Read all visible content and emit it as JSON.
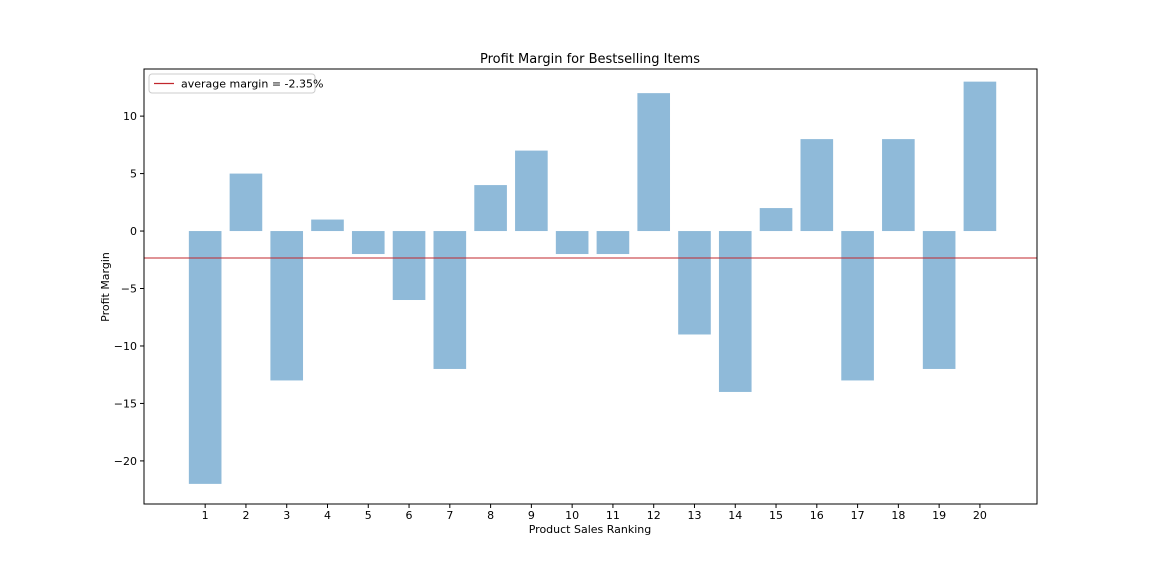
{
  "chart_data": {
    "type": "bar",
    "title": "Profit Margin for Bestselling Items",
    "xlabel": "Product Sales Ranking",
    "ylabel": "Profit Margin",
    "categories": [
      "1",
      "2",
      "3",
      "4",
      "5",
      "6",
      "7",
      "8",
      "9",
      "10",
      "11",
      "12",
      "13",
      "14",
      "15",
      "16",
      "17",
      "18",
      "19",
      "20"
    ],
    "values": [
      -22,
      5,
      -13,
      1,
      -2,
      -6,
      -12,
      4,
      7,
      -2,
      -2,
      12,
      -9,
      -14,
      2,
      8,
      -13,
      8,
      -12,
      13
    ],
    "ylim": [
      -23.75,
      14.1
    ],
    "xlim": [
      -0.5,
      21.4
    ],
    "yticks": [
      10,
      5,
      0,
      -5,
      -10,
      -15,
      -20
    ],
    "ytick_labels": [
      "10",
      "5",
      "0",
      "−5",
      "−10",
      "−15",
      "−20"
    ],
    "average": -2.35,
    "legend": {
      "label": "average margin = -2.35%",
      "placement": "top-left"
    },
    "bar_color": "#8fbad9",
    "line_color": "#c1272d",
    "grid": false
  }
}
